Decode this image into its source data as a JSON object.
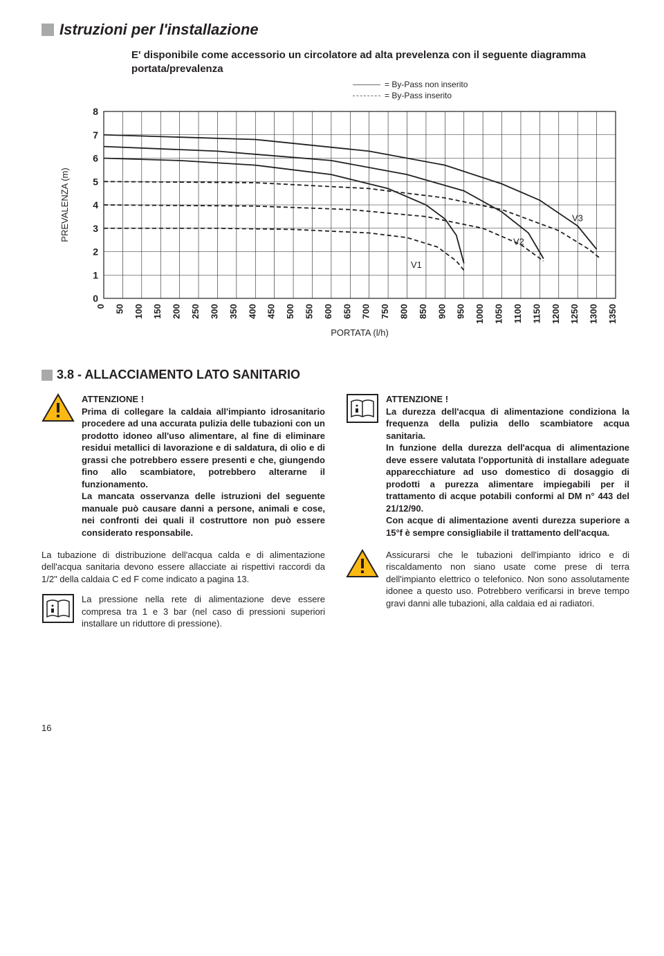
{
  "title": "Istruzioni per l'installazione",
  "intro": "E' disponibile come accessorio un circolatore ad alta prevelenza con il seguente diagramma portata/prevalenza",
  "legend": {
    "solid": "= By-Pass non inserito",
    "dashed": "= By-Pass inserito"
  },
  "chart": {
    "y_label": "PREVALENZA (m)",
    "x_label": "PORTATA (l/h)",
    "y_ticks": [
      "0",
      "1",
      "2",
      "3",
      "4",
      "5",
      "6",
      "7",
      "8"
    ],
    "x_ticks": [
      "0",
      "50",
      "100",
      "150",
      "200",
      "250",
      "300",
      "350",
      "400",
      "450",
      "500",
      "550",
      "600",
      "650",
      "700",
      "750",
      "800",
      "850",
      "900",
      "950",
      "1000",
      "1050",
      "1100",
      "1150",
      "1200",
      "1250",
      "1300",
      "1350"
    ],
    "ylim": [
      0,
      8
    ],
    "xlim": [
      0,
      1350
    ],
    "series_labels": {
      "v1": "V1",
      "v2": "V2",
      "v3": "V3"
    },
    "solid_curves": [
      [
        [
          0,
          6.0
        ],
        [
          200,
          5.9
        ],
        [
          400,
          5.7
        ],
        [
          600,
          5.3
        ],
        [
          750,
          4.7
        ],
        [
          850,
          4.0
        ],
        [
          900,
          3.4
        ],
        [
          930,
          2.7
        ],
        [
          950,
          1.5
        ]
      ],
      [
        [
          0,
          6.5
        ],
        [
          300,
          6.3
        ],
        [
          600,
          5.9
        ],
        [
          800,
          5.3
        ],
        [
          950,
          4.6
        ],
        [
          1050,
          3.7
        ],
        [
          1120,
          2.8
        ],
        [
          1160,
          1.7
        ]
      ],
      [
        [
          0,
          7.0
        ],
        [
          400,
          6.8
        ],
        [
          700,
          6.3
        ],
        [
          900,
          5.7
        ],
        [
          1050,
          4.9
        ],
        [
          1150,
          4.2
        ],
        [
          1250,
          3.1
        ],
        [
          1300,
          2.1
        ]
      ]
    ],
    "dashed_curves": [
      [
        [
          0,
          3.0
        ],
        [
          300,
          3.0
        ],
        [
          500,
          2.95
        ],
        [
          700,
          2.8
        ],
        [
          800,
          2.6
        ],
        [
          880,
          2.2
        ],
        [
          930,
          1.6
        ],
        [
          950,
          1.2
        ]
      ],
      [
        [
          0,
          4.0
        ],
        [
          400,
          3.95
        ],
        [
          650,
          3.8
        ],
        [
          850,
          3.5
        ],
        [
          1000,
          3.0
        ],
        [
          1100,
          2.3
        ],
        [
          1160,
          1.6
        ]
      ],
      [
        [
          0,
          5.0
        ],
        [
          400,
          4.95
        ],
        [
          700,
          4.7
        ],
        [
          900,
          4.3
        ],
        [
          1050,
          3.8
        ],
        [
          1200,
          2.9
        ],
        [
          1280,
          2.1
        ],
        [
          1310,
          1.7
        ]
      ]
    ],
    "colors": {
      "axis": "#231f20",
      "grid": "#231f20",
      "curve": "#231f20"
    }
  },
  "section": "3.8   -  ALLACCIAMENTO LATO SANITARIO",
  "notes": {
    "att": "ATTENZIONE !",
    "l1": "Prima di collegare la caldaia all'impianto idrosanitario procedere ad una accurata pulizia delle tubazioni con un prodotto idoneo all'uso alimentare, al fine di eliminare residui metallici di lavorazione e di saldatura, di olio e di grassi che potrebbero essere presenti e che, giungendo fino allo scambiatore, potrebbero alterarne il funzionamento.",
    "l1b": "La mancata osservanza delle istruzioni del seguente manuale può causare danni a persone, animali e cose, nei confronti dei quali il costruttore non può essere considerato responsabile.",
    "l2": "La tubazione di distribuzione dell'acqua calda e di alimentazione dell'acqua sanitaria devono essere allacciate ai rispettivi raccordi da 1/2\" della caldaia C ed F come indicato a pagina 13.",
    "l3": "La pressione nella rete di alimentazione deve essere compresa tra 1 e 3 bar (nel caso di pressioni superiori installare un riduttore di pressione).",
    "r1": "La durezza dell'acqua di alimentazione condiziona la frequenza della pulizia dello scambiatore acqua sanitaria.",
    "r1b": "In funzione della durezza dell'acqua di alimentazione deve essere valutata l'opportunità di installare adeguate apparecchiature ad uso domestico di dosaggio di prodotti a purezza alimentare impiegabili per il trattamento di acque potabili conformi al DM n° 443 del 21/12/90.",
    "r1c": "Con acque di alimentazione aventi durezza superiore a 15°f è sempre consigliabile il trattamento dell'acqua.",
    "r2": "Assicurarsi che le tubazioni dell'impianto idrico e di riscaldamento non siano usate come prese di terra dell'impianto elettrico o telefonico. Non sono assolutamente idonee a questo uso. Potrebbero verificarsi in breve tempo gravi danni alle tubazioni, alla caldaia ed ai radiatori."
  },
  "page_num": "16"
}
